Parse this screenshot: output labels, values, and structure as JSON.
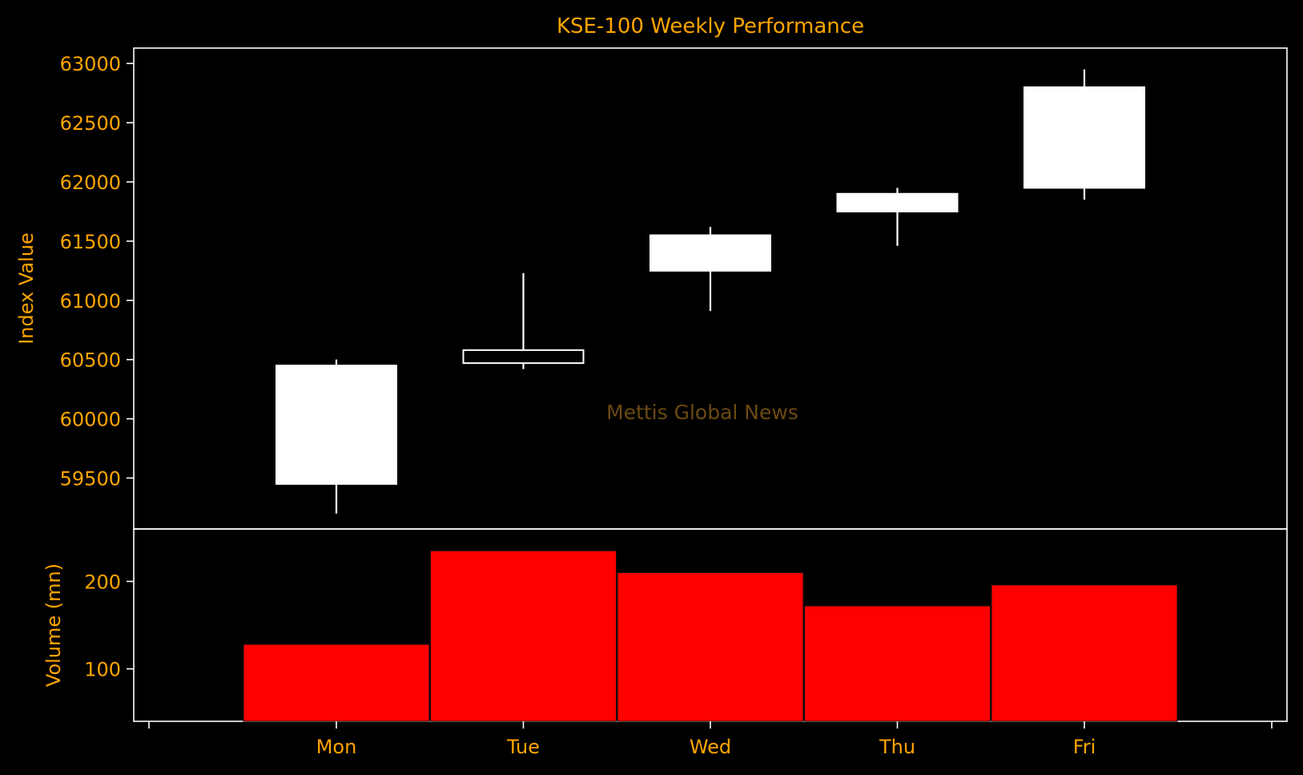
{
  "colors": {
    "background": "#000000",
    "text": "#ffa500",
    "axis": "#ffffff",
    "candle": "#ffffff",
    "volume": "#ff0000",
    "watermark": "#6b4a12"
  },
  "chart_data": [
    {
      "type": "candlestick",
      "title": "KSE-100 Weekly Performance",
      "ylabel": "Index Value",
      "watermark": "Mettis Global News",
      "categories": [
        "Mon",
        "Tue",
        "Wed",
        "Thu",
        "Fri"
      ],
      "ohlc": [
        {
          "open": 59450,
          "high": 60500,
          "low": 59200,
          "close": 60450
        },
        {
          "open": 60470,
          "high": 61230,
          "low": 60420,
          "close": 60580
        },
        {
          "open": 61250,
          "high": 61620,
          "low": 60910,
          "close": 61550
        },
        {
          "open": 61750,
          "high": 61950,
          "low": 61460,
          "close": 61900
        },
        {
          "open": 61950,
          "high": 62950,
          "low": 61850,
          "close": 62800
        }
      ],
      "hollow": [
        false,
        true,
        false,
        false,
        false
      ],
      "ylim": [
        59070,
        63130
      ],
      "yticks": [
        59500,
        60000,
        60500,
        61000,
        61500,
        62000,
        62500,
        63000
      ],
      "grid": false
    },
    {
      "type": "bar",
      "ylabel": "Volume (mn)",
      "categories": [
        "Mon",
        "Tue",
        "Wed",
        "Thu",
        "Fri"
      ],
      "values": [
        128,
        235,
        210,
        172,
        196
      ],
      "ylim": [
        40,
        260
      ],
      "yticks": [
        100,
        200
      ],
      "grid": false
    }
  ]
}
